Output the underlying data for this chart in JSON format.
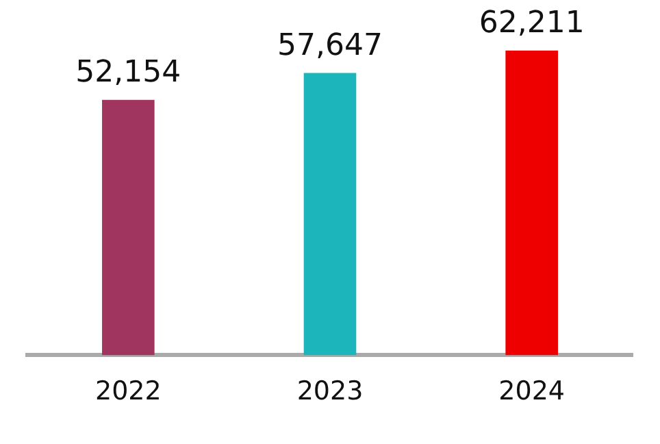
{
  "chart_data": {
    "type": "bar",
    "categories": [
      "2022",
      "2023",
      "2024"
    ],
    "values": [
      52154,
      57647,
      62211
    ],
    "colors": [
      "#a0365f",
      "#1cb5bc",
      "#ee0000"
    ],
    "value_labels": [
      "52,154",
      "57,647",
      "62,211"
    ],
    "grid": false,
    "legend": false
  }
}
